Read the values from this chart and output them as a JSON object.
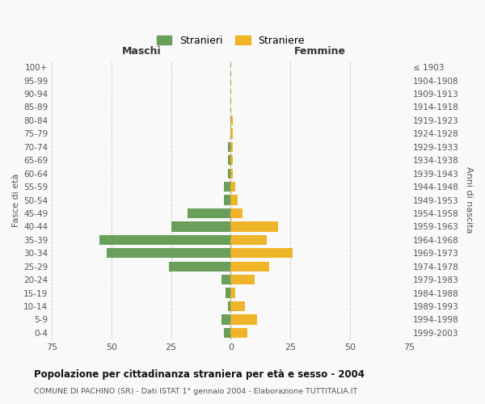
{
  "age_groups": [
    "0-4",
    "5-9",
    "10-14",
    "15-19",
    "20-24",
    "25-29",
    "30-34",
    "35-39",
    "40-44",
    "45-49",
    "50-54",
    "55-59",
    "60-64",
    "65-69",
    "70-74",
    "75-79",
    "80-84",
    "85-89",
    "90-94",
    "95-99",
    "100+"
  ],
  "birth_years": [
    "1999-2003",
    "1994-1998",
    "1989-1993",
    "1984-1988",
    "1979-1983",
    "1974-1978",
    "1969-1973",
    "1964-1968",
    "1959-1963",
    "1954-1958",
    "1949-1953",
    "1944-1948",
    "1939-1943",
    "1934-1938",
    "1929-1933",
    "1924-1928",
    "1919-1923",
    "1914-1918",
    "1909-1913",
    "1904-1908",
    "≤ 1903"
  ],
  "males": [
    3,
    4,
    1,
    2,
    4,
    26,
    52,
    55,
    25,
    18,
    3,
    3,
    1,
    1,
    1,
    0,
    0,
    0,
    0,
    0,
    0
  ],
  "females": [
    7,
    11,
    6,
    2,
    10,
    16,
    26,
    15,
    20,
    5,
    3,
    2,
    1,
    1,
    1,
    1,
    1,
    0,
    0,
    0,
    0
  ],
  "male_color": "#6a9e5b",
  "female_color": "#f0b429",
  "background_color": "#f9f9f9",
  "grid_color": "#cccccc",
  "title": "Popolazione per cittadinanza straniera per età e sesso - 2004",
  "subtitle": "COMUNE DI PACHINO (SR) - Dati ISTAT 1° gennaio 2004 - Elaborazione TUTTITALIA.IT",
  "xlabel_left": "Maschi",
  "xlabel_right": "Femmine",
  "ylabel_left": "Fasce di età",
  "ylabel_right": "Anni di nascita",
  "legend_male": "Stranieri",
  "legend_female": "Straniere",
  "xlim": 75
}
